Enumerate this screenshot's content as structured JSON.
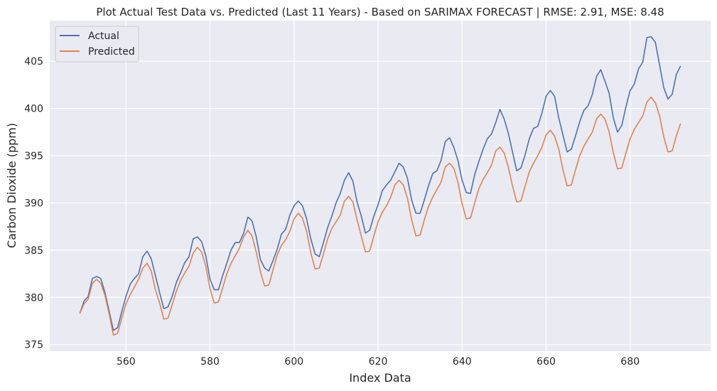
{
  "chart_data": {
    "type": "line",
    "title": "Plot Actual Test Data vs. Predicted (Last 11 Years) - Based on SARIMAX FORECAST | RMSE: 2.91, MSE: 8.48",
    "xlabel": "Index Data",
    "ylabel": "Carbon Dioxide (ppm)",
    "xlim": [
      541.85,
      699.15
    ],
    "ylim": [
      374.3,
      409.3
    ],
    "xticks": [
      560,
      580,
      600,
      620,
      640,
      660,
      680
    ],
    "yticks": [
      375,
      380,
      385,
      390,
      395,
      400,
      405
    ],
    "grid": true,
    "legend_position": "top-left",
    "x": [
      549,
      550,
      551,
      552,
      553,
      554,
      555,
      556,
      557,
      558,
      559,
      560,
      561,
      562,
      563,
      564,
      565,
      566,
      567,
      568,
      569,
      570,
      571,
      572,
      573,
      574,
      575,
      576,
      577,
      578,
      579,
      580,
      581,
      582,
      583,
      584,
      585,
      586,
      587,
      588,
      589,
      590,
      591,
      592,
      593,
      594,
      595,
      596,
      597,
      598,
      599,
      600,
      601,
      602,
      603,
      604,
      605,
      606,
      607,
      608,
      609,
      610,
      611,
      612,
      613,
      614,
      615,
      616,
      617,
      618,
      619,
      620,
      621,
      622,
      623,
      624,
      625,
      626,
      627,
      628,
      629,
      630,
      631,
      632,
      633,
      634,
      635,
      636,
      637,
      638,
      639,
      640,
      641,
      642,
      643,
      644,
      645,
      646,
      647,
      648,
      649,
      650,
      651,
      652,
      653,
      654,
      655,
      656,
      657,
      658,
      659,
      660,
      661,
      662,
      663,
      664,
      665,
      666,
      667,
      668,
      669,
      670,
      671,
      672,
      673,
      674,
      675,
      676,
      677,
      678,
      679,
      680,
      681,
      682,
      683,
      684,
      685,
      686,
      687,
      688,
      689,
      690,
      691,
      692
    ],
    "series": [
      {
        "name": "Actual",
        "color": "#4c72b0",
        "values": [
          378.3,
          379.6,
          380.1,
          382.0,
          382.2,
          382.0,
          380.5,
          378.5,
          376.5,
          376.8,
          378.5,
          380.1,
          381.4,
          382.0,
          382.5,
          384.3,
          384.9,
          384.1,
          382.3,
          380.5,
          378.8,
          379.0,
          380.1,
          381.6,
          382.6,
          383.7,
          384.3,
          386.2,
          386.4,
          385.9,
          384.4,
          381.9,
          380.8,
          380.8,
          382.3,
          383.6,
          385.0,
          385.8,
          385.8,
          386.8,
          388.5,
          388.1,
          386.4,
          384.0,
          383.1,
          382.8,
          383.9,
          385.1,
          386.7,
          387.2,
          388.7,
          389.7,
          390.2,
          389.7,
          388.3,
          386.2,
          384.6,
          384.3,
          385.8,
          387.4,
          388.6,
          390.0,
          391.0,
          392.4,
          393.2,
          392.3,
          390.1,
          388.6,
          386.8,
          387.1,
          388.6,
          389.8,
          391.3,
          391.9,
          392.4,
          393.3,
          394.2,
          393.8,
          392.6,
          390.3,
          388.9,
          388.9,
          390.3,
          391.8,
          393.1,
          393.4,
          394.5,
          396.5,
          396.9,
          395.9,
          394.5,
          392.4,
          391.1,
          391.0,
          393.0,
          394.4,
          395.7,
          396.8,
          397.3,
          398.5,
          399.9,
          398.9,
          397.4,
          395.4,
          393.4,
          393.7,
          395.1,
          396.8,
          397.9,
          398.1,
          399.5,
          401.3,
          401.9,
          401.3,
          399.0,
          397.2,
          395.4,
          395.7,
          397.1,
          398.6,
          399.8,
          400.3,
          401.5,
          403.4,
          404.1,
          402.9,
          401.6,
          399.0,
          397.5,
          398.2,
          400.2,
          401.9,
          402.6,
          404.2,
          404.9,
          407.5,
          407.6,
          407.0,
          404.6,
          402.2,
          401.0,
          401.5,
          403.6,
          404.5
        ]
      },
      {
        "name": "Predicted",
        "color": "#dd8452",
        "values": [
          378.3,
          379.3,
          379.8,
          381.5,
          381.9,
          381.5,
          380.2,
          378.2,
          376.0,
          376.2,
          377.8,
          379.3,
          380.3,
          381.1,
          381.9,
          383.1,
          383.6,
          382.8,
          380.8,
          379.4,
          377.7,
          377.8,
          379.2,
          380.7,
          381.8,
          382.6,
          383.3,
          384.7,
          385.3,
          384.8,
          383.3,
          380.9,
          379.4,
          379.5,
          381.0,
          382.5,
          383.6,
          384.4,
          385.2,
          386.4,
          387.1,
          386.5,
          384.8,
          382.7,
          381.2,
          381.3,
          382.9,
          384.5,
          385.5,
          386.1,
          387.0,
          388.3,
          388.9,
          388.4,
          387.0,
          384.7,
          383.0,
          383.1,
          384.6,
          386.2,
          387.3,
          388.0,
          388.7,
          390.2,
          390.7,
          390.1,
          388.2,
          386.5,
          384.8,
          384.9,
          386.5,
          388.0,
          389.0,
          389.7,
          390.6,
          391.9,
          392.4,
          391.9,
          390.5,
          388.2,
          386.5,
          386.6,
          388.2,
          389.6,
          390.6,
          391.4,
          392.2,
          393.8,
          394.2,
          393.7,
          392.2,
          389.9,
          388.3,
          388.4,
          390.0,
          391.5,
          392.5,
          393.2,
          394.0,
          395.5,
          395.9,
          395.3,
          393.8,
          391.8,
          390.1,
          390.2,
          391.8,
          393.3,
          394.2,
          395.0,
          395.9,
          397.2,
          397.7,
          397.1,
          395.7,
          393.5,
          391.8,
          391.9,
          393.5,
          395.0,
          396.0,
          396.8,
          397.5,
          398.9,
          399.4,
          398.9,
          397.5,
          395.3,
          393.6,
          393.7,
          395.3,
          396.8,
          397.8,
          398.5,
          399.2,
          400.7,
          401.2,
          400.6,
          399.2,
          397.0,
          395.4,
          395.5,
          397.1,
          398.4
        ]
      }
    ]
  }
}
